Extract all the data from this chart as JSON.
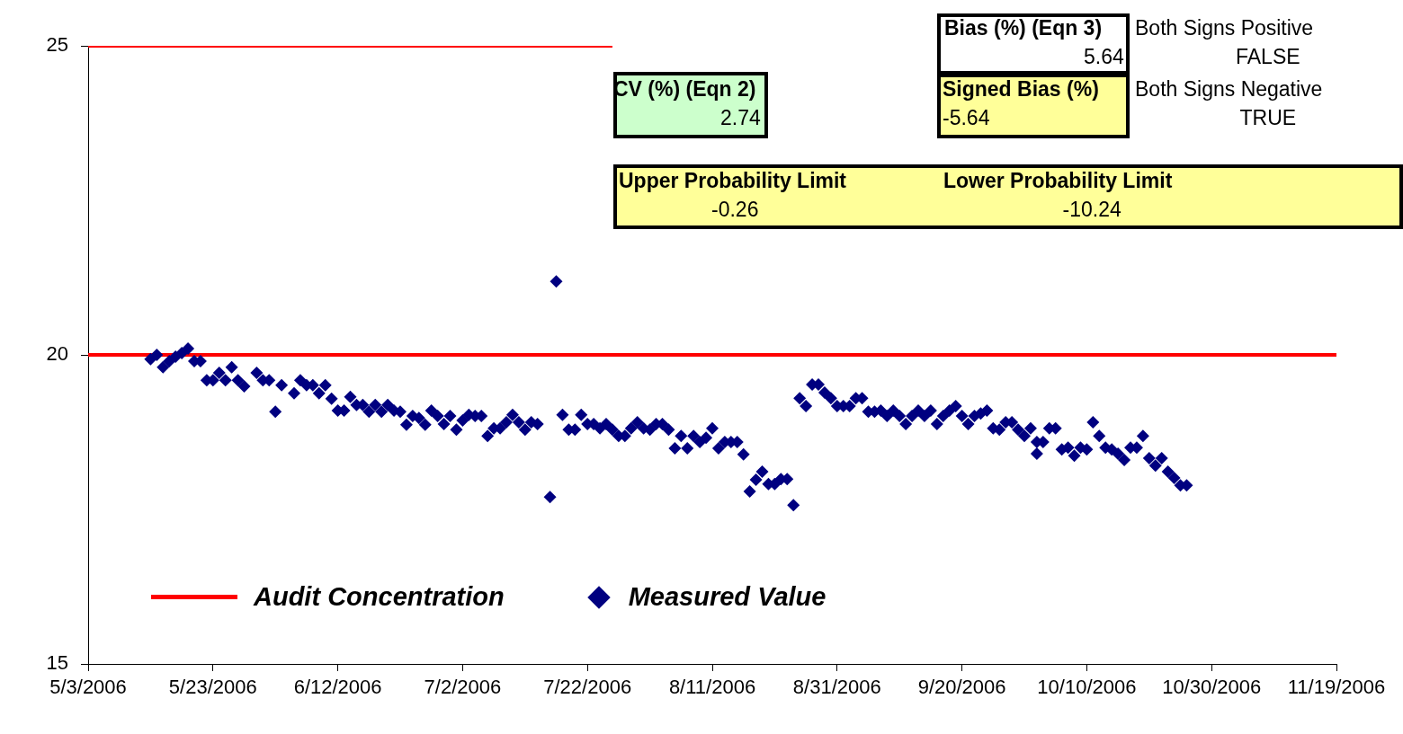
{
  "chart_data": {
    "type": "scatter",
    "annotations": [
      "Bias (%) (Eqn 3)",
      "5.64",
      "Both Signs Positive",
      "FALSE",
      "CV (%) (Eqn 2)",
      "2.74",
      "Signed Bias (%)",
      "-5.64",
      "Both Signs Negative",
      "TRUE",
      "Upper Probability Limit",
      "-0.26",
      "Lower Probability Limit",
      "-10.24"
    ],
    "xlim": [
      "2006-05-03",
      "2006-11-19"
    ],
    "xticks": [
      {
        "value": "2006-05-03",
        "label": "5/3/2006"
      },
      {
        "value": "2006-05-23",
        "label": "5/23/2006"
      },
      {
        "value": "2006-06-12",
        "label": "6/12/2006"
      },
      {
        "value": "2006-07-02",
        "label": "7/2/2006"
      },
      {
        "value": "2006-07-22",
        "label": "7/22/2006"
      },
      {
        "value": "2006-08-11",
        "label": "8/11/2006"
      },
      {
        "value": "2006-08-31",
        "label": "8/31/2006"
      },
      {
        "value": "2006-09-20",
        "label": "9/20/2006"
      },
      {
        "value": "2006-10-10",
        "label": "10/10/2006"
      },
      {
        "value": "2006-10-30",
        "label": "10/30/2006"
      },
      {
        "value": "2006-11-19",
        "label": "11/19/2006"
      }
    ],
    "ylim": [
      15,
      25
    ],
    "yticks": [
      15,
      20,
      25
    ],
    "grid": false,
    "legend": "bottom left",
    "series": [
      {
        "type": "line",
        "color": "#ff0000",
        "marker": "none",
        "x": [
          "2006-05-03",
          "2006-07-26"
        ],
        "values": [
          25,
          25
        ]
      },
      {
        "type": "line",
        "name": "Audit Concentration",
        "color": "#ff0000",
        "marker": "none",
        "x": [
          "2006-05-03",
          "2006-11-19"
        ],
        "values": [
          20,
          20
        ]
      },
      {
        "type": "scatter",
        "name": "Measured Value",
        "color": "#000080",
        "marker": "diamond",
        "x": [
          "2006-05-13",
          "2006-05-14",
          "2006-05-15",
          "2006-05-16",
          "2006-05-17",
          "2006-05-18",
          "2006-05-19",
          "2006-05-20",
          "2006-05-21",
          "2006-05-22",
          "2006-05-23",
          "2006-05-24",
          "2006-05-25",
          "2006-05-26",
          "2006-05-27",
          "2006-05-28",
          "2006-05-30",
          "2006-05-31",
          "2006-06-01",
          "2006-06-02",
          "2006-06-03",
          "2006-06-05",
          "2006-06-06",
          "2006-06-07",
          "2006-06-08",
          "2006-06-09",
          "2006-06-10",
          "2006-06-11",
          "2006-06-12",
          "2006-06-13",
          "2006-06-14",
          "2006-06-15",
          "2006-06-16",
          "2006-06-17",
          "2006-06-18",
          "2006-06-19",
          "2006-06-20",
          "2006-06-21",
          "2006-06-22",
          "2006-06-23",
          "2006-06-24",
          "2006-06-25",
          "2006-06-26",
          "2006-06-27",
          "2006-06-28",
          "2006-06-29",
          "2006-06-30",
          "2006-07-01",
          "2006-07-02",
          "2006-07-03",
          "2006-07-04",
          "2006-07-05",
          "2006-07-06",
          "2006-07-07",
          "2006-07-08",
          "2006-07-09",
          "2006-07-10",
          "2006-07-11",
          "2006-07-12",
          "2006-07-13",
          "2006-07-14",
          "2006-07-16",
          "2006-07-17",
          "2006-07-18",
          "2006-07-19",
          "2006-07-20",
          "2006-07-21",
          "2006-07-22",
          "2006-07-23",
          "2006-07-24",
          "2006-07-25",
          "2006-07-26",
          "2006-07-27",
          "2006-07-28",
          "2006-07-29",
          "2006-07-30",
          "2006-07-31",
          "2006-08-01",
          "2006-08-02",
          "2006-08-03",
          "2006-08-04",
          "2006-08-05",
          "2006-08-06",
          "2006-08-07",
          "2006-08-08",
          "2006-08-09",
          "2006-08-10",
          "2006-08-11",
          "2006-08-12",
          "2006-08-13",
          "2006-08-14",
          "2006-08-15",
          "2006-08-16",
          "2006-08-17",
          "2006-08-18",
          "2006-08-19",
          "2006-08-20",
          "2006-08-21",
          "2006-08-22",
          "2006-08-23",
          "2006-08-24",
          "2006-08-25",
          "2006-08-26",
          "2006-08-27",
          "2006-08-28",
          "2006-08-29",
          "2006-08-30",
          "2006-08-31",
          "2006-09-01",
          "2006-09-02",
          "2006-09-03",
          "2006-09-04",
          "2006-09-05",
          "2006-09-06",
          "2006-09-07",
          "2006-09-08",
          "2006-09-09",
          "2006-09-10",
          "2006-09-11",
          "2006-09-12",
          "2006-09-13",
          "2006-09-14",
          "2006-09-15",
          "2006-09-16",
          "2006-09-17",
          "2006-09-18",
          "2006-09-19",
          "2006-09-20",
          "2006-09-21",
          "2006-09-22",
          "2006-09-23",
          "2006-09-24",
          "2006-09-25",
          "2006-09-26",
          "2006-09-27",
          "2006-09-28",
          "2006-09-29",
          "2006-09-30",
          "2006-10-01",
          "2006-10-02",
          "2006-10-02",
          "2006-10-03",
          "2006-10-04",
          "2006-10-05",
          "2006-10-06",
          "2006-10-07",
          "2006-10-08",
          "2006-10-09",
          "2006-10-10",
          "2006-10-11",
          "2006-10-12",
          "2006-10-13",
          "2006-10-14",
          "2006-10-15",
          "2006-10-16",
          "2006-10-17",
          "2006-10-18",
          "2006-10-19",
          "2006-10-20",
          "2006-10-21",
          "2006-10-22",
          "2006-10-23",
          "2006-10-24",
          "2006-10-25",
          "2006-10-26"
        ],
        "values": [
          19.93,
          20.0,
          19.8,
          19.9,
          19.97,
          20.03,
          20.1,
          19.9,
          19.9,
          19.59,
          19.59,
          19.71,
          19.59,
          19.8,
          19.59,
          19.49,
          19.71,
          19.59,
          19.59,
          19.08,
          19.51,
          19.38,
          19.59,
          19.51,
          19.51,
          19.38,
          19.51,
          19.29,
          19.1,
          19.1,
          19.32,
          19.19,
          19.19,
          19.08,
          19.19,
          19.08,
          19.19,
          19.1,
          19.08,
          18.87,
          19.01,
          18.98,
          18.87,
          19.1,
          19.01,
          18.88,
          19.01,
          18.79,
          18.94,
          19.03,
          19.01,
          19.01,
          18.69,
          18.81,
          18.81,
          18.91,
          19.03,
          18.91,
          18.79,
          18.91,
          18.88,
          17.7,
          21.19,
          19.03,
          18.79,
          18.79,
          19.03,
          18.88,
          18.88,
          18.81,
          18.88,
          18.79,
          18.69,
          18.69,
          18.81,
          18.91,
          18.81,
          18.79,
          18.88,
          18.88,
          18.79,
          18.49,
          18.69,
          18.49,
          18.69,
          18.59,
          18.66,
          18.81,
          18.49,
          18.59,
          18.59,
          18.59,
          18.39,
          17.79,
          17.98,
          18.11,
          17.91,
          17.91,
          17.99,
          17.99,
          17.57,
          19.3,
          19.17,
          19.52,
          19.52,
          19.39,
          19.3,
          19.17,
          19.17,
          19.17,
          19.3,
          19.3,
          19.08,
          19.08,
          19.1,
          19.01,
          19.1,
          19.01,
          18.88,
          19.01,
          19.1,
          19.01,
          19.1,
          18.88,
          19.01,
          19.1,
          19.17,
          19.01,
          18.88,
          19.01,
          19.05,
          19.1,
          18.81,
          18.79,
          18.91,
          18.91,
          18.79,
          18.69,
          18.81,
          18.59,
          18.4,
          18.59,
          18.81,
          18.81,
          18.47,
          18.5,
          18.37,
          18.5,
          18.47,
          18.91,
          18.69,
          18.5,
          18.47,
          18.4,
          18.3,
          18.5,
          18.5,
          18.69,
          18.33,
          18.21,
          18.33,
          18.11,
          18.01,
          17.89,
          17.89
        ]
      }
    ]
  }
}
